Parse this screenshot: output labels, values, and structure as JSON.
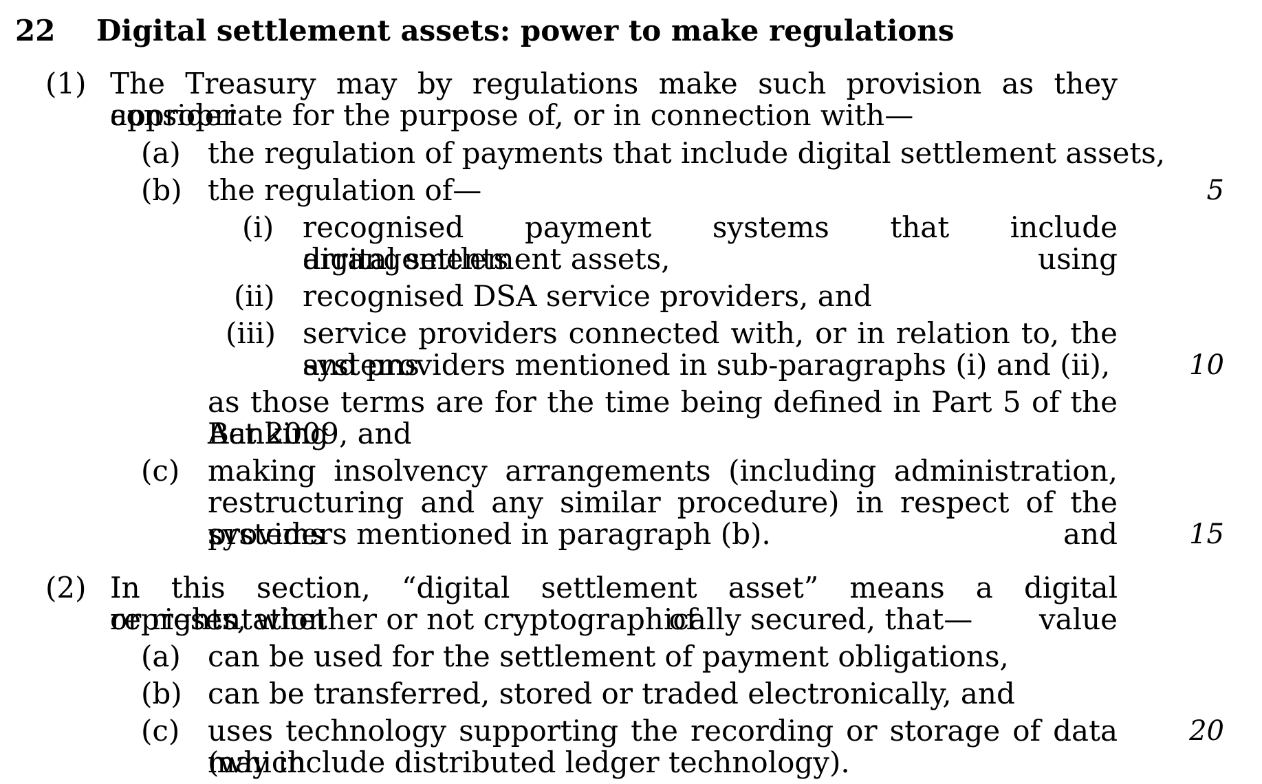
{
  "section": {
    "number": "22",
    "title": "Digital settlement assets: power to make regulations"
  },
  "s1": {
    "num": "(1)",
    "line1": "The Treasury may by regulations make such provision as they consider",
    "line2": "appropriate for the purpose of, or in connection with—",
    "a": {
      "label": "(a)",
      "text": "the regulation of payments that include digital settlement assets,"
    },
    "b": {
      "label": "(b)",
      "text": "the regulation of—",
      "i": {
        "label": "(i)",
        "line1": "recognised payment systems that include arrangements using",
        "line2": "digital settlement assets,"
      },
      "ii": {
        "label": "(ii)",
        "line1": "recognised DSA service providers, and"
      },
      "iii": {
        "label": "(iii)",
        "line1": "service providers connected with, or in relation to, the systems",
        "line2": "and providers mentioned in sub-paragraphs (i) and (ii),"
      },
      "tail1": "as those terms are for the time being defined in Part 5 of the Banking",
      "tail2": "Act 2009, and"
    },
    "c": {
      "label": "(c)",
      "line1": "making insolvency arrangements (including administration,",
      "line2": "restructuring and any similar procedure) in respect of the systems and",
      "line3": "providers mentioned in paragraph (b)."
    }
  },
  "s2": {
    "num": "(2)",
    "line1": "In this section, “digital settlement asset” means a digital representation of value",
    "line2": "or rights, whether or not cryptographically secured, that—",
    "a": {
      "label": "(a)",
      "text": "can be used for the settlement of payment obligations,"
    },
    "b": {
      "label": "(b)",
      "text": "can be transferred, stored or traded electronically, and"
    },
    "c": {
      "label": "(c)",
      "line1": "uses technology supporting the recording or storage of data (which",
      "line2": "may include distributed ledger technology)."
    }
  },
  "line_numbers": {
    "n5": "5",
    "n10": "10",
    "n15": "15",
    "n20": "20"
  }
}
